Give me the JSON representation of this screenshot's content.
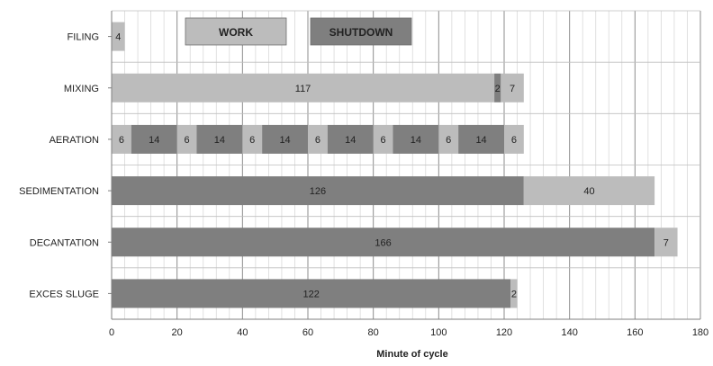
{
  "chart_data": {
    "type": "bar",
    "orientation": "horizontal",
    "stacked": true,
    "xlabel": "Minute of cycle",
    "xlim": [
      0,
      180
    ],
    "major_ticks": [
      0,
      20,
      40,
      60,
      80,
      100,
      120,
      140,
      160,
      180
    ],
    "minor_tick_step": 4,
    "grid": true,
    "legend": {
      "placement": "top",
      "items": [
        {
          "label": "WORK",
          "kind": "work"
        },
        {
          "label": "SHUTDOWN",
          "kind": "shutdown"
        }
      ]
    },
    "colors": {
      "work": "#bcbcbc",
      "shutdown": "#7f7f7f"
    },
    "categories": [
      "FILING",
      "MIXING",
      "AERATION",
      "SEDIMENTATION",
      "DECANTATION",
      "EXCES SLUGE"
    ],
    "rows": [
      {
        "category": "FILING",
        "segments": [
          {
            "kind": "work",
            "value": 4,
            "label": "4"
          }
        ]
      },
      {
        "category": "MIXING",
        "segments": [
          {
            "kind": "work",
            "value": 117,
            "label": "117"
          },
          {
            "kind": "shutdown",
            "value": 2,
            "label": "2"
          },
          {
            "kind": "work",
            "value": 7,
            "label": "7"
          }
        ]
      },
      {
        "category": "AERATION",
        "segments": [
          {
            "kind": "work",
            "value": 6,
            "label": "6"
          },
          {
            "kind": "shutdown",
            "value": 14,
            "label": "14"
          },
          {
            "kind": "work",
            "value": 6,
            "label": "6"
          },
          {
            "kind": "shutdown",
            "value": 14,
            "label": "14"
          },
          {
            "kind": "work",
            "value": 6,
            "label": "6"
          },
          {
            "kind": "shutdown",
            "value": 14,
            "label": "14"
          },
          {
            "kind": "work",
            "value": 6,
            "label": "6"
          },
          {
            "kind": "shutdown",
            "value": 14,
            "label": "14"
          },
          {
            "kind": "work",
            "value": 6,
            "label": "6"
          },
          {
            "kind": "shutdown",
            "value": 14,
            "label": "14"
          },
          {
            "kind": "work",
            "value": 6,
            "label": "6"
          },
          {
            "kind": "shutdown",
            "value": 14,
            "label": "14"
          },
          {
            "kind": "work",
            "value": 6,
            "label": "6"
          }
        ]
      },
      {
        "category": "SEDIMENTATION",
        "segments": [
          {
            "kind": "shutdown",
            "value": 126,
            "label": "126"
          },
          {
            "kind": "work",
            "value": 40,
            "label": "40"
          }
        ]
      },
      {
        "category": "DECANTATION",
        "segments": [
          {
            "kind": "shutdown",
            "value": 166,
            "label": "166"
          },
          {
            "kind": "work",
            "value": 7,
            "label": "7"
          }
        ]
      },
      {
        "category": "EXCES SLUGE",
        "segments": [
          {
            "kind": "shutdown",
            "value": 122,
            "label": "122"
          },
          {
            "kind": "work",
            "value": 2,
            "label": "2"
          }
        ]
      }
    ]
  }
}
